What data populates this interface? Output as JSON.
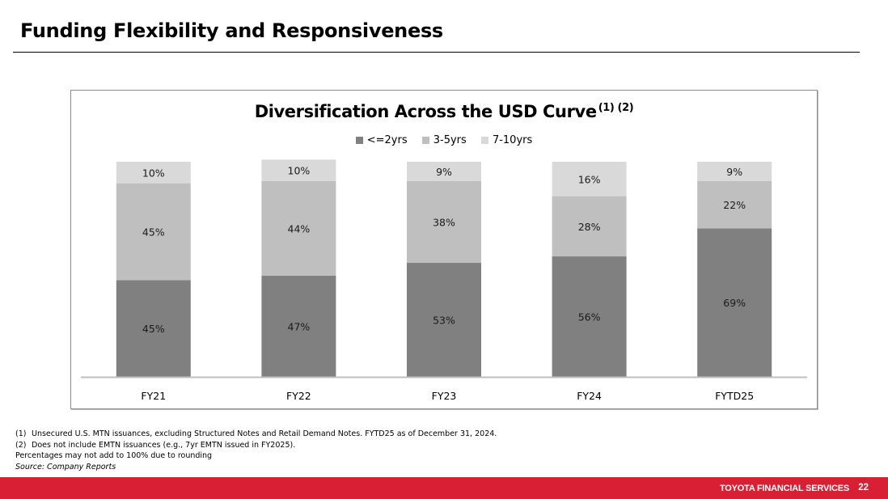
{
  "page": {
    "title": "Funding Flexibility and Responsiveness"
  },
  "chart_data": {
    "type": "bar",
    "stacked": true,
    "title": "Diversification Across the USD Curve",
    "title_superscript": "(1) (2)",
    "xlabel": "",
    "ylabel": "",
    "ylim": [
      0,
      100
    ],
    "grid": false,
    "legend_position": "top",
    "categories": [
      "FY21",
      "FY22",
      "FY23",
      "FY24",
      "FYTD25"
    ],
    "series": [
      {
        "name": "<=2yrs",
        "color": "#808080",
        "values": [
          45,
          47,
          53,
          56,
          69
        ],
        "labels": [
          "45%",
          "47%",
          "53%",
          "56%",
          "69%"
        ]
      },
      {
        "name": "3-5yrs",
        "color": "#bfbfbf",
        "values": [
          45,
          44,
          38,
          28,
          22
        ],
        "labels": [
          "45%",
          "44%",
          "38%",
          "28%",
          "22%"
        ]
      },
      {
        "name": "7-10yrs",
        "color": "#d9d9d9",
        "values": [
          10,
          10,
          9,
          16,
          9
        ],
        "labels": [
          "10%",
          "10%",
          "9%",
          "16%",
          "9%"
        ]
      }
    ]
  },
  "footnotes": [
    {
      "num": "(1)",
      "text": "Unsecured U.S. MTN issuances, excluding Structured Notes and Retail Demand Notes.  FYTD25 as of December 31, 2024."
    },
    {
      "num": "(2)",
      "text": "Does not include EMTN issuances (e.g., 7yr EMTN issued in FY2025)."
    }
  ],
  "note": "Percentages may not add to 100% due to rounding",
  "source": "Source: Company Reports",
  "footer": {
    "brand": "TOYOTA FINANCIAL SERVICES",
    "page_number": "22",
    "color": "#d81f33"
  }
}
